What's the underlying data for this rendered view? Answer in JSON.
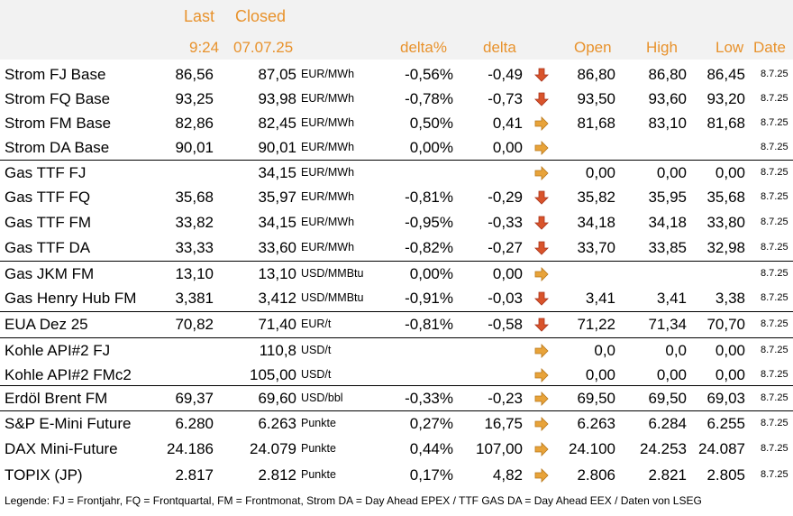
{
  "header": {
    "last_label": "Last",
    "closed_label": "Closed",
    "last_time": "9:24",
    "closed_date": "07.07.25",
    "delta_pct_label": "delta%",
    "delta_label": "delta",
    "open_label": "Open",
    "high_label": "High",
    "low_label": "Low",
    "date_label": "Date"
  },
  "colors": {
    "header_text": "#e8922c",
    "arrow_down": "#d9542b",
    "arrow_right": "#e8a33a",
    "header_bg": "#f2f2f2"
  },
  "rows": [
    {
      "name": "Strom FJ Base",
      "last": "86,56",
      "closed": "87,05",
      "unit": "EUR/MWh",
      "delta_pct": "-0,56%",
      "delta": "-0,49",
      "arrow": "down",
      "open": "86,80",
      "high": "86,80",
      "low": "86,45",
      "date": "8.7.25"
    },
    {
      "name": "Strom FQ Base",
      "last": "93,25",
      "closed": "93,98",
      "unit": "EUR/MWh",
      "delta_pct": "-0,78%",
      "delta": "-0,73",
      "arrow": "down",
      "open": "93,50",
      "high": "93,60",
      "low": "93,20",
      "date": "8.7.25"
    },
    {
      "name": "Strom FM Base",
      "last": "82,86",
      "closed": "82,45",
      "unit": "EUR/MWh",
      "delta_pct": "0,50%",
      "delta": "0,41",
      "arrow": "right",
      "open": "81,68",
      "high": "83,10",
      "low": "81,68",
      "date": "8.7.25"
    },
    {
      "name": "Strom DA Base",
      "last": "90,01",
      "closed": "90,01",
      "unit": "EUR/MWh",
      "delta_pct": "0,00%",
      "delta": "0,00",
      "arrow": "right",
      "open": "",
      "high": "",
      "low": "",
      "date": "8.7.25"
    },
    {
      "name": "Gas TTF FJ",
      "last": "",
      "closed": "34,15",
      "unit": "EUR/MWh",
      "delta_pct": "",
      "delta": "",
      "arrow": "right",
      "open": "0,00",
      "high": "0,00",
      "low": "0,00",
      "date": "8.7.25"
    },
    {
      "name": "Gas TTF FQ",
      "last": "35,68",
      "closed": "35,97",
      "unit": "EUR/MWh",
      "delta_pct": "-0,81%",
      "delta": "-0,29",
      "arrow": "down",
      "open": "35,82",
      "high": "35,95",
      "low": "35,68",
      "date": "8.7.25"
    },
    {
      "name": "Gas TTF FM",
      "last": "33,82",
      "closed": "34,15",
      "unit": "EUR/MWh",
      "delta_pct": "-0,95%",
      "delta": "-0,33",
      "arrow": "down",
      "open": "34,18",
      "high": "34,18",
      "low": "33,80",
      "date": "8.7.25"
    },
    {
      "name": "Gas TTF DA",
      "last": "33,33",
      "closed": "33,60",
      "unit": "EUR/MWh",
      "delta_pct": "-0,82%",
      "delta": "-0,27",
      "arrow": "down",
      "open": "33,70",
      "high": "33,85",
      "low": "32,98",
      "date": "8.7.25"
    },
    {
      "name": "Gas JKM FM",
      "last": "13,10",
      "closed": "13,10",
      "unit": "USD/MMBtu",
      "delta_pct": "0,00%",
      "delta": "0,00",
      "arrow": "right",
      "open": "",
      "high": "",
      "low": "",
      "date": "8.7.25"
    },
    {
      "name": "Gas Henry Hub FM",
      "last": "3,381",
      "closed": "3,412",
      "unit": "USD/MMBtu",
      "delta_pct": "-0,91%",
      "delta": "-0,03",
      "arrow": "down",
      "open": "3,41",
      "high": "3,41",
      "low": "3,38",
      "date": "8.7.25"
    },
    {
      "name": "EUA Dez 25",
      "last": "70,82",
      "closed": "71,40",
      "unit": "EUR/t",
      "delta_pct": "-0,81%",
      "delta": "-0,58",
      "arrow": "down",
      "open": "71,22",
      "high": "71,34",
      "low": "70,70",
      "date": "8.7.25"
    },
    {
      "name": "Kohle API#2 FJ",
      "last": "",
      "closed": "110,8",
      "unit": "USD/t",
      "delta_pct": "",
      "delta": "",
      "arrow": "right",
      "open": "0,0",
      "high": "0,0",
      "low": "0,00",
      "date": "8.7.25"
    },
    {
      "name": "Kohle API#2 FMc2",
      "last": "",
      "closed": "105,00",
      "unit": "USD/t",
      "delta_pct": "",
      "delta": "",
      "arrow": "right",
      "open": "0,00",
      "high": "0,00",
      "low": "0,00",
      "date": "8.7.25"
    },
    {
      "name": "Erdöl Brent FM",
      "last": "69,37",
      "closed": "69,60",
      "unit": "USD/bbl",
      "delta_pct": "-0,33%",
      "delta": "-0,23",
      "arrow": "right",
      "open": "69,50",
      "high": "69,50",
      "low": "69,03",
      "date": "8.7.25"
    },
    {
      "name": "S&P E-Mini Future",
      "last": "6.280",
      "closed": "6.263",
      "unit": "Punkte",
      "delta_pct": "0,27%",
      "delta": "16,75",
      "arrow": "right",
      "open": "6.263",
      "high": "6.284",
      "low": "6.255",
      "date": "8.7.25"
    },
    {
      "name": "DAX Mini-Future",
      "last": "24.186",
      "closed": "24.079",
      "unit": "Punkte",
      "delta_pct": "0,44%",
      "delta": "107,00",
      "arrow": "right",
      "open": "24.100",
      "high": "24.253",
      "low": "24.087",
      "date": "8.7.25"
    },
    {
      "name": "TOPIX (JP)",
      "last": "2.817",
      "closed": "2.812",
      "unit": "Punkte",
      "delta_pct": "0,17%",
      "delta": "4,82",
      "arrow": "right",
      "open": "2.806",
      "high": "2.821",
      "low": "2.805",
      "date": "8.7.25"
    }
  ],
  "legend": "Legende: FJ = Frontjahr, FQ = Frontquartal, FM = Frontmonat, Strom DA = Day Ahead EPEX / TTF GAS DA = Day Ahead EEX / Daten von LSEG"
}
